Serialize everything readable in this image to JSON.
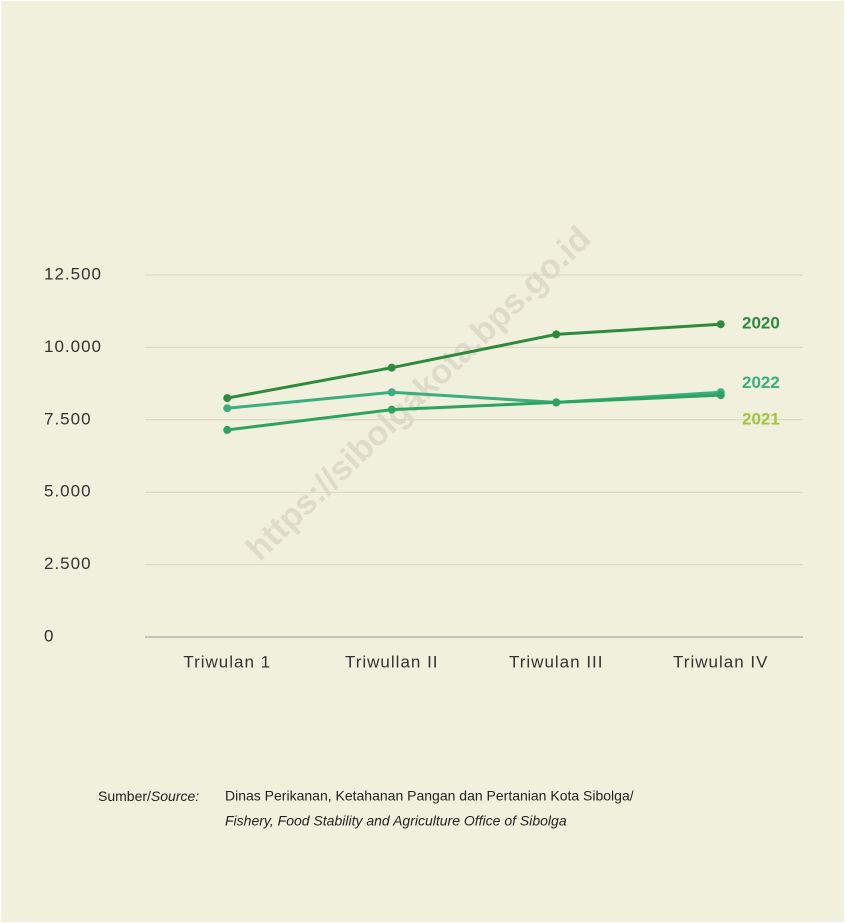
{
  "watermark": "https://sibolgakota.bps.go.id",
  "source": {
    "label": "Sumber/",
    "label_en": "Source:",
    "text": "Dinas Perikanan, Ketahanan Pangan dan Pertanian Kota Sibolga/",
    "text_en": "Fishery, Food Stability and Agriculture Office of Sibolga"
  },
  "chart_data": {
    "type": "line",
    "categories": [
      "Triwulan 1",
      "Triwullan II",
      "Triwulan III",
      "Triwulan IV"
    ],
    "series": [
      {
        "name": "2020",
        "color": "#2e8b3e",
        "label_color": "#2e8b3e",
        "values": [
          8250,
          9300,
          10450,
          10800
        ]
      },
      {
        "name": "2022",
        "color": "#3aae7e",
        "label_color": "#3aae7e",
        "values": [
          7900,
          8450,
          8100,
          8450
        ]
      },
      {
        "name": "2021",
        "color": "#2ea35f",
        "label_color": "#a3c43c",
        "values": [
          7150,
          7850,
          8100,
          8350
        ]
      }
    ],
    "ylim": [
      0,
      12500
    ],
    "yticks": [
      0,
      {
        "value": 2500,
        "label": "2.500"
      },
      {
        "value": 5000,
        "label": "5.000"
      },
      {
        "value": 7500,
        "label": "7.500"
      },
      {
        "value": 10000,
        "label": "10.000"
      },
      {
        "value": 12500,
        "label": "12.500"
      }
    ],
    "grid": true
  }
}
